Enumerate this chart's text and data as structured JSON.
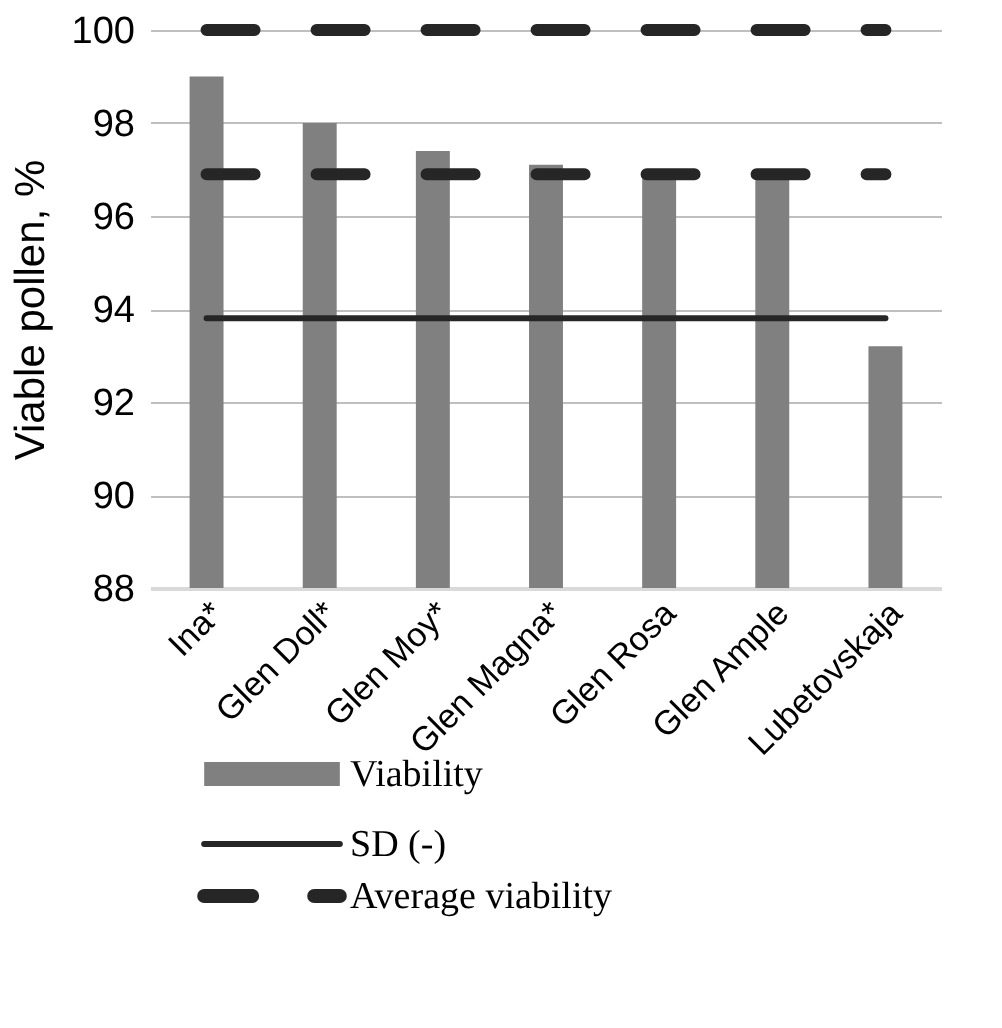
{
  "chart_data": {
    "type": "bar",
    "ylabel": "Viable pollen, %",
    "categories": [
      "Ina*",
      "Glen Doll*",
      "Glen Moy*",
      "Glen Magna*",
      "Glen Rosa",
      "Glen Ample",
      "Lubetovskaja"
    ],
    "series": [
      {
        "name": "Viability",
        "color": "#808080",
        "values": [
          99.0,
          98.0,
          97.4,
          97.1,
          96.9,
          96.9,
          93.2
        ]
      },
      {
        "name": "SD (-)",
        "type": "line",
        "color": "#262626",
        "line_style": "solid",
        "values": [
          93.8,
          93.8,
          93.8,
          93.8,
          93.8,
          93.8,
          93.8
        ]
      },
      {
        "name": "Average viability",
        "type": "line",
        "color": "#262626",
        "line_style": "dashed",
        "values": [
          96.9,
          96.9,
          96.9,
          96.9,
          96.9,
          96.9,
          96.9
        ]
      },
      {
        "type": "line",
        "color": "#262626",
        "line_style": "dashed",
        "values": [
          100,
          100,
          100,
          100,
          100,
          100,
          100
        ]
      }
    ],
    "ylim": [
      88,
      100
    ],
    "yticks": [
      88,
      90,
      92,
      94,
      96,
      98,
      100
    ],
    "grid": "y",
    "legend": "bottom"
  }
}
